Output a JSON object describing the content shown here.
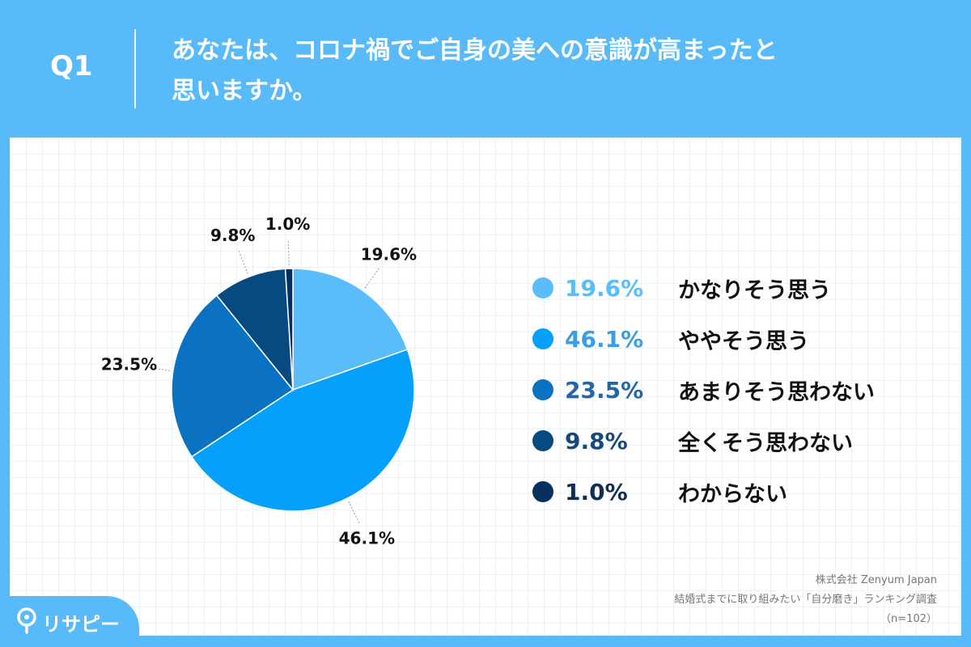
{
  "header": {
    "q_label": "Q1",
    "question_line1": "あなたは、コロナ禍でご自身の美への意識が高まったと",
    "question_line2": "思いますか。"
  },
  "chart_data": {
    "type": "pie",
    "start_angle_deg": 0,
    "direction": "clockwise",
    "categories": [
      "かなりそう思う",
      "ややそう思う",
      "あまりそう思わない",
      "全くそう思わない",
      "わからない"
    ],
    "values": [
      19.6,
      46.1,
      23.5,
      9.8,
      1.0
    ],
    "value_labels": [
      "19.6%",
      "46.1%",
      "23.5%",
      "9.8%",
      "1.0%"
    ],
    "colors": [
      "#5bbcfa",
      "#04a0fb",
      "#0b72c2",
      "#074a82",
      "#08305e"
    ],
    "legend_text_colors": [
      "#5bbcfa",
      "#3a9de6",
      "#2467a8",
      "#164a7c",
      "#0f2e55"
    ],
    "legend_placement": "right"
  },
  "source": {
    "line1": "株式会社 Zenyum Japan",
    "line2": "結婚式までに取り組みたい「自分磨き」ランキング調査",
    "line3": "（n=102）"
  },
  "logo": {
    "text": "リサピー"
  }
}
